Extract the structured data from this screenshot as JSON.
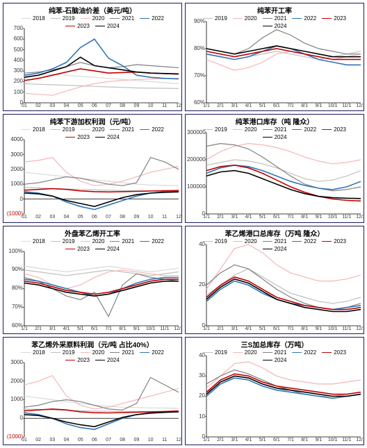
{
  "global": {
    "colors": {
      "y2018": "#d9d9d9",
      "y2019": "#bfbfbf",
      "y2020": "#f4b6b6",
      "y2021": "#808080",
      "y2022": "#2e75b6",
      "y2023": "#c00000",
      "y2024": "#000000"
    },
    "panel_border": "#1a1a5e",
    "background": "#ffffff",
    "title_fontsize": 10,
    "legend_fontsize": 8,
    "axis_fontsize": 8
  },
  "charts": [
    {
      "id": "c0",
      "title": "纯苯-石脑油价差（美元/吨）",
      "legend_years": [
        "2018",
        "2019",
        "2020",
        "2021",
        "2022",
        "2023",
        "2024"
      ],
      "x_labels": [
        "01",
        "02",
        "03",
        "04",
        "05",
        "06",
        "07",
        "08",
        "09",
        "10",
        "11",
        "12"
      ],
      "y_min": 0,
      "y_max": 700,
      "y_step": 100,
      "series": {
        "2018": [
          250,
          260,
          270,
          260,
          250,
          240,
          230,
          220,
          210,
          200,
          190,
          180
        ],
        "2019": [
          180,
          175,
          170,
          165,
          160,
          155,
          150,
          145,
          140,
          138,
          137,
          135
        ],
        "2020": [
          90,
          80,
          70,
          110,
          150,
          180,
          200,
          210,
          220,
          225,
          228,
          230
        ],
        "2021": [
          280,
          290,
          310,
          340,
          380,
          350,
          330,
          340,
          360,
          350,
          340,
          330
        ],
        "2022": [
          260,
          280,
          320,
          380,
          520,
          600,
          420,
          350,
          260,
          240,
          230,
          225
        ],
        "2023": [
          210,
          230,
          260,
          290,
          320,
          300,
          280,
          285,
          290,
          280,
          275,
          270
        ],
        "2024": [
          240,
          260,
          300,
          340,
          430,
          350,
          330,
          310,
          290,
          280,
          276,
          272
        ]
      }
    },
    {
      "id": "c1",
      "title": "纯苯开工率",
      "legend_years": [
        "2019",
        "2020",
        "2021",
        "2022",
        "2023",
        "2024"
      ],
      "x_labels": [
        "1/1",
        "2/1",
        "3/1",
        "4/1",
        "5/1",
        "6/1",
        "7/1",
        "8/1",
        "9/1",
        "10/1",
        "11/1",
        "12/1"
      ],
      "y_min": 60,
      "y_max": 90,
      "y_step": 10,
      "y_suffix": "%",
      "series": {
        "2019": [
          78,
          77,
          76,
          77,
          78,
          79,
          78,
          77,
          76,
          77,
          78,
          79
        ],
        "2020": [
          76,
          74,
          72,
          73,
          75,
          78,
          79,
          78,
          77,
          76,
          77,
          78
        ],
        "2021": [
          80,
          79,
          78,
          80,
          84,
          87,
          85,
          82,
          80,
          79,
          78,
          78
        ],
        "2022": [
          78,
          77,
          76,
          77,
          79,
          81,
          80,
          78,
          76,
          75,
          74,
          74
        ],
        "2023": [
          79,
          78,
          77,
          78,
          79,
          80,
          79,
          78,
          77,
          76,
          76,
          76
        ],
        "2024": [
          80,
          79,
          78,
          79,
          80,
          81,
          80,
          79,
          78,
          77,
          77,
          77
        ]
      }
    },
    {
      "id": "c2",
      "title": "纯苯下游加权利润（元/吨）",
      "legend_years": [
        "2018",
        "2019",
        "2020",
        "2021",
        "2022",
        "2023",
        "2024"
      ],
      "x_labels": [
        "01",
        "02",
        "03",
        "04",
        "05",
        "06",
        "07",
        "08",
        "09",
        "10",
        "11",
        "12"
      ],
      "y_min": -1000,
      "y_max": 4000,
      "y_step": 1000,
      "neg_labels": true,
      "series": {
        "2018": [
          1800,
          1700,
          1600,
          1500,
          1400,
          1300,
          1200,
          1100,
          1000,
          950,
          920,
          900
        ],
        "2019": [
          800,
          750,
          700,
          680,
          650,
          620,
          600,
          580,
          560,
          550,
          545,
          540
        ],
        "2020": [
          2500,
          2600,
          2800,
          1800,
          1200,
          900,
          1000,
          1200,
          1500,
          1800,
          2000,
          2200
        ],
        "2021": [
          1000,
          1100,
          1300,
          1500,
          1400,
          1200,
          1000,
          900,
          1100,
          2800,
          2500,
          2000
        ],
        "2022": [
          500,
          400,
          200,
          -200,
          -500,
          -700,
          -400,
          -100,
          200,
          400,
          500,
          550
        ],
        "2023": [
          600,
          650,
          700,
          650,
          550,
          500,
          480,
          500,
          520,
          540,
          560,
          580
        ],
        "2024": [
          400,
          350,
          200,
          -100,
          -300,
          -500,
          -200,
          100,
          300,
          400,
          450,
          480
        ]
      }
    },
    {
      "id": "c3",
      "title": "纯苯港口库存（吨 隆众）",
      "legend_years": [
        "2019",
        "2020",
        "2021",
        "2022",
        "2023",
        "2024"
      ],
      "x_labels": [
        "1/1",
        "2/1",
        "3/1",
        "4/1",
        "5/1",
        "6/1",
        "7/1",
        "8/1",
        "9/1",
        "10/1",
        "11/1",
        "12/1"
      ],
      "y_min": 0,
      "y_max": 300000,
      "y_step": 100000,
      "series": {
        "2019": [
          180000,
          190000,
          200000,
          195000,
          185000,
          170000,
          150000,
          130000,
          120000,
          125000,
          140000,
          160000
        ],
        "2020": [
          200000,
          230000,
          250000,
          260000,
          255000,
          245000,
          230000,
          210000,
          195000,
          185000,
          190000,
          200000
        ],
        "2021": [
          250000,
          260000,
          255000,
          240000,
          210000,
          175000,
          140000,
          110000,
          95000,
          85000,
          90000,
          100000
        ],
        "2022": [
          150000,
          170000,
          180000,
          175000,
          160000,
          140000,
          120000,
          105000,
          95000,
          90000,
          100000,
          120000
        ],
        "2023": [
          160000,
          175000,
          180000,
          170000,
          150000,
          125000,
          100000,
          80000,
          65000,
          55000,
          50000,
          48000
        ],
        "2024": [
          140000,
          155000,
          160000,
          150000,
          130000,
          110000,
          90000,
          75000,
          65000,
          60000,
          58000,
          57000
        ]
      }
    },
    {
      "id": "c4",
      "title": "外盘苯乙烯开工率",
      "legend_years": [
        "2018",
        "2019",
        "2020",
        "2021",
        "2022",
        "2023",
        "2024"
      ],
      "x_labels": [
        "1/1",
        "2/1",
        "3/1",
        "4/1",
        "5/1",
        "6/1",
        "7/1",
        "8/1",
        "9/1",
        "10/1",
        "11/1",
        "12/1"
      ],
      "y_min": 60,
      "y_max": 100,
      "y_step": 10,
      "y_suffix": "%",
      "series": {
        "2018": [
          92,
          91,
          90,
          89,
          90,
          91,
          92,
          91,
          90,
          89,
          90,
          91
        ],
        "2019": [
          90,
          89,
          88,
          87,
          88,
          89,
          90,
          89,
          88,
          87,
          88,
          89
        ],
        "2020": [
          88,
          86,
          82,
          80,
          82,
          86,
          89,
          90,
          89,
          88,
          87,
          87
        ],
        "2021": [
          86,
          84,
          80,
          76,
          74,
          78,
          65,
          82,
          88,
          86,
          85,
          84
        ],
        "2022": [
          85,
          84,
          82,
          80,
          78,
          76,
          77,
          80,
          83,
          85,
          86,
          86
        ],
        "2023": [
          84,
          83,
          81,
          79,
          78,
          77,
          78,
          80,
          82,
          84,
          85,
          85
        ],
        "2024": [
          83,
          82,
          80,
          78,
          77,
          76,
          77,
          79,
          81,
          83,
          84,
          84
        ]
      }
    },
    {
      "id": "c5",
      "title": "苯乙烯港口总库存（万吨 隆众）",
      "legend_years": [
        "2019",
        "2020",
        "2021",
        "2022",
        "2023",
        "2024"
      ],
      "x_labels": [
        "1/1",
        "2/1",
        "3/1",
        "4/1",
        "5/1",
        "6/1",
        "7/1",
        "8/1",
        "9/1",
        "10/1",
        "11/1",
        "12/1"
      ],
      "y_min": 0,
      "y_max": 40,
      "y_step": 20,
      "series": {
        "2019": [
          15,
          20,
          25,
          28,
          24,
          20,
          16,
          14,
          12,
          11,
          12,
          14
        ],
        "2020": [
          18,
          28,
          38,
          40,
          36,
          30,
          26,
          24,
          22,
          22,
          23,
          25
        ],
        "2021": [
          20,
          26,
          30,
          28,
          23,
          18,
          14,
          11,
          9,
          8,
          9,
          11
        ],
        "2022": [
          12,
          18,
          22,
          20,
          16,
          13,
          11,
          10,
          9,
          8,
          9,
          10
        ],
        "2023": [
          14,
          20,
          24,
          22,
          18,
          14,
          12,
          10,
          9,
          8,
          8,
          9
        ],
        "2024": [
          13,
          19,
          23,
          21,
          17,
          13,
          11,
          9,
          8,
          7,
          7,
          8
        ]
      }
    },
    {
      "id": "c6",
      "title": "苯乙烯外采原料利润（元/吨 占比40%）",
      "legend_years": [
        "2018",
        "2019",
        "2020",
        "2021",
        "2022",
        "2023",
        "2024"
      ],
      "x_labels": [
        "01",
        "02",
        "03",
        "04",
        "05",
        "06",
        "07",
        "08",
        "09",
        "10",
        "11",
        "12"
      ],
      "y_min": -1000,
      "y_max": 3000,
      "y_step": 1000,
      "neg_labels": true,
      "series": {
        "2018": [
          1200,
          1100,
          1000,
          900,
          800,
          700,
          650,
          600,
          580,
          560,
          550,
          540
        ],
        "2019": [
          500,
          480,
          450,
          430,
          410,
          390,
          380,
          370,
          365,
          360,
          358,
          355
        ],
        "2020": [
          1800,
          2000,
          2300,
          1200,
          700,
          500,
          600,
          800,
          1000,
          1200,
          1400,
          1600
        ],
        "2021": [
          600,
          700,
          900,
          1000,
          900,
          700,
          500,
          450,
          800,
          2200,
          1800,
          1400
        ],
        "2022": [
          300,
          200,
          0,
          -300,
          -500,
          -600,
          -300,
          0,
          200,
          300,
          350,
          380
        ],
        "2023": [
          400,
          450,
          500,
          450,
          350,
          300,
          290,
          310,
          330,
          350,
          370,
          390
        ],
        "2024": [
          200,
          150,
          0,
          -200,
          -350,
          -450,
          -200,
          50,
          200,
          280,
          320,
          350
        ]
      }
    },
    {
      "id": "c7",
      "title": "三S加总库存（万吨）",
      "legend_years": [
        "2019",
        "2020",
        "2021",
        "2022",
        "2023",
        "2024"
      ],
      "x_labels": [
        "1/1",
        "2/1",
        "3/1",
        "4/1",
        "5/1",
        "6/1",
        "7/1",
        "8/1",
        "9/1",
        "10/1",
        "11/1",
        "12/1"
      ],
      "y_min": 0,
      "y_max": 40,
      "y_step": 10,
      "series": {
        "2019": [
          22,
          26,
          30,
          29,
          26,
          24,
          22,
          21,
          20,
          20,
          21,
          22
        ],
        "2020": [
          24,
          30,
          36,
          37,
          34,
          30,
          28,
          27,
          26,
          26,
          27,
          28
        ],
        "2021": [
          26,
          30,
          33,
          31,
          28,
          25,
          23,
          21,
          20,
          19,
          20,
          21
        ],
        "2022": [
          20,
          26,
          29,
          28,
          25,
          23,
          22,
          21,
          20,
          19,
          20,
          21
        ],
        "2023": [
          22,
          28,
          31,
          30,
          27,
          25,
          24,
          23,
          22,
          21,
          21,
          22
        ],
        "2024": [
          21,
          27,
          30,
          29,
          26,
          24,
          23,
          22,
          21,
          20,
          20,
          21
        ]
      }
    }
  ]
}
